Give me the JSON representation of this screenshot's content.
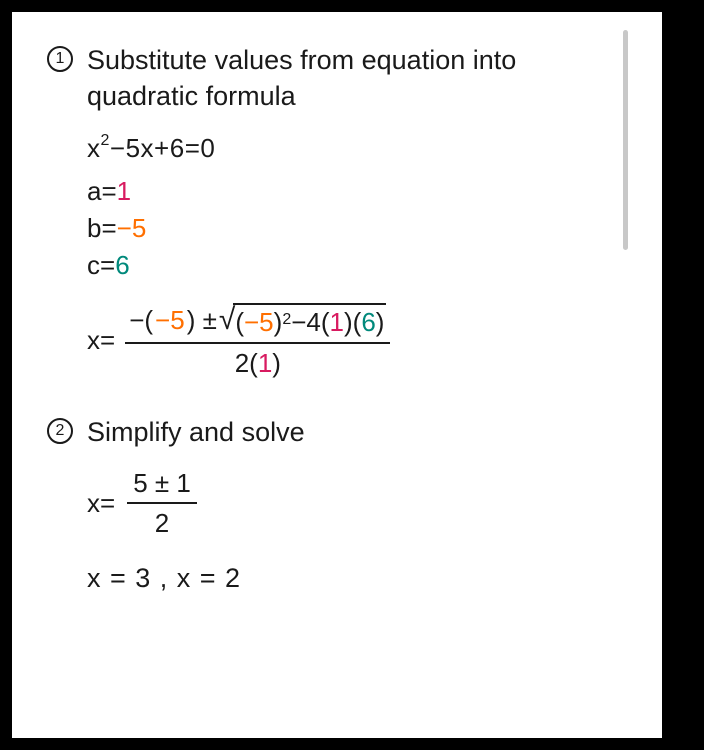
{
  "colors": {
    "a": "#d81b60",
    "b": "#ff6f00",
    "c": "#00897b",
    "text": "#1a1a1a",
    "bg": "#ffffff",
    "outer": "#000000",
    "scrollbar": "#c8c8c8"
  },
  "step1": {
    "num": "1",
    "title": "Substitute values from equation into quadratic formula",
    "equation": {
      "pre": "x",
      "exp": "2",
      "mid": "−5x+6=0"
    },
    "coeffs": {
      "a_label": "a=",
      "a_val": "1",
      "b_label": "b=",
      "b_val": "−5",
      "c_label": "c=",
      "c_val": "6"
    },
    "formula": {
      "x_eq": "x=",
      "num_lead_neg": "−(",
      "num_neg5": "−5",
      "num_close": ") ± ",
      "sqrt_sym": "√",
      "sqrt_open": "(",
      "sqrt_neg5": "−5",
      "sqrt_close_exp": ")",
      "sqrt_exp": "2",
      "sqrt_minus4": "−4(",
      "sqrt_1": "1",
      "sqrt_mid": ")(",
      "sqrt_6": "6",
      "sqrt_end": ")",
      "den_2": "2(",
      "den_1": "1",
      "den_close": ")"
    }
  },
  "step2": {
    "num": "2",
    "title": "Simplify and solve",
    "formula": {
      "x_eq": "x=",
      "num": "5 ± 1",
      "den": "2"
    },
    "answers": "x = 3 ,   x = 2"
  }
}
